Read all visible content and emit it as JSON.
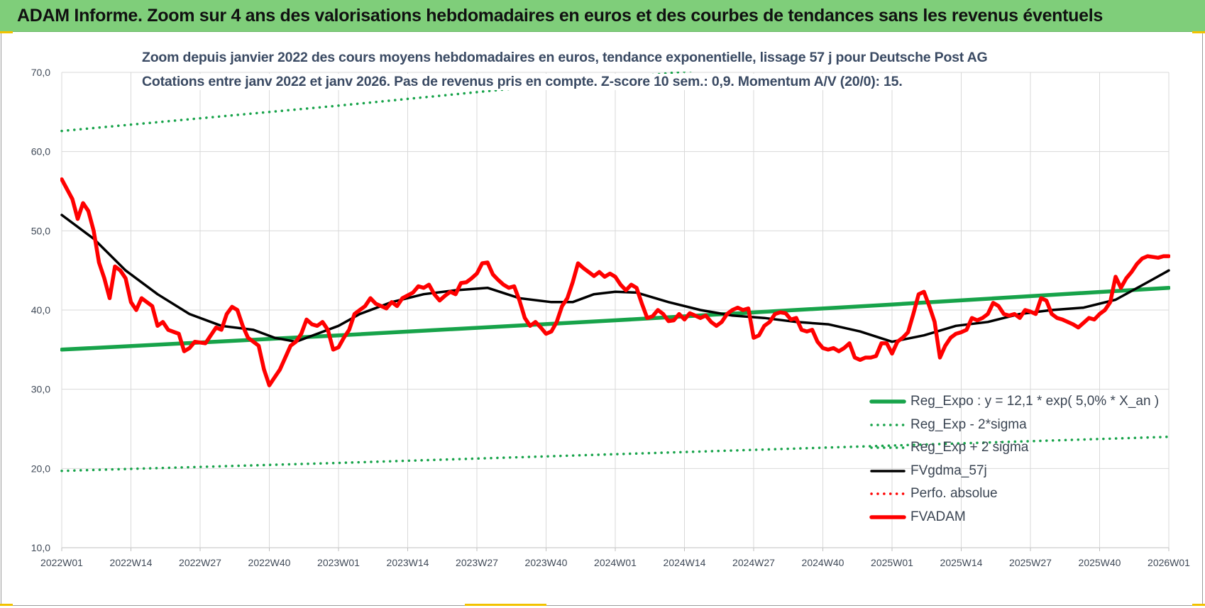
{
  "banner": {
    "title": "ADAM Informe. Zoom sur 4 ans des valorisations hebdomadaires en euros et des courbes de tendances sans les revenus éventuels"
  },
  "chart_data": {
    "type": "line",
    "title": "Zoom depuis janvier 2022 des cours moyens hebdomadaires en euros, tendance exponentielle, lissage 57 j pour Deutsche Post AG",
    "subtitle": "Cotations entre janv 2022 et janv 2026. Pas de revenus pris en compte. Z-score 10 sem.: 0,9. Momentum A/V (20/0): 15.",
    "xlabel": "",
    "ylabel": "",
    "ylim": [
      10,
      70
    ],
    "yticks": [
      "10,0",
      "20,0",
      "30,0",
      "40,0",
      "50,0",
      "60,0",
      "70,0"
    ],
    "xticks": [
      "2022W01",
      "2022W14",
      "2022W27",
      "2022W40",
      "2023W01",
      "2023W14",
      "2023W27",
      "2023W40",
      "2024W01",
      "2024W14",
      "2024W27",
      "2024W40",
      "2025W01",
      "2025W14",
      "2025W27",
      "2025W40",
      "2026W01"
    ],
    "x_range_weeks": [
      0,
      208
    ],
    "grid": true,
    "legend_position": "bottom-right",
    "series": [
      {
        "name": "Reg_Expo : y = 12,1 * exp( 5,0% *  X_an )",
        "color": "#17a34a",
        "style": "solid-thick",
        "points": [
          [
            0,
            35.0
          ],
          [
            52,
            36.8
          ],
          [
            104,
            38.7
          ],
          [
            156,
            40.7
          ],
          [
            208,
            42.8
          ]
        ]
      },
      {
        "name": "Reg_Exp - 2*sigma",
        "color": "#17a34a",
        "style": "dotted",
        "points": [
          [
            0,
            19.7
          ],
          [
            52,
            20.7
          ],
          [
            104,
            21.8
          ],
          [
            156,
            22.9
          ],
          [
            208,
            24.0
          ]
        ]
      },
      {
        "name": "Reg_Exp + 2 sigma",
        "color": "#17a34a",
        "style": "dotted",
        "points": [
          [
            0,
            62.6
          ],
          [
            52,
            65.8
          ],
          [
            104,
            69.2
          ],
          [
            156,
            72.8
          ],
          [
            208,
            76.5
          ]
        ]
      },
      {
        "name": "FVgdma_57j",
        "color": "#000000",
        "style": "solid",
        "points": [
          [
            0,
            52.0
          ],
          [
            6,
            49.0
          ],
          [
            12,
            45.0
          ],
          [
            18,
            42.0
          ],
          [
            24,
            39.5
          ],
          [
            30,
            38.0
          ],
          [
            36,
            37.5
          ],
          [
            40,
            36.5
          ],
          [
            44,
            36.0
          ],
          [
            48,
            37.0
          ],
          [
            52,
            38.0
          ],
          [
            56,
            39.5
          ],
          [
            62,
            41.0
          ],
          [
            68,
            42.0
          ],
          [
            74,
            42.5
          ],
          [
            80,
            42.8
          ],
          [
            86,
            41.5
          ],
          [
            92,
            41.0
          ],
          [
            96,
            41.0
          ],
          [
            100,
            42.0
          ],
          [
            104,
            42.3
          ],
          [
            108,
            42.2
          ],
          [
            114,
            41.0
          ],
          [
            120,
            40.0
          ],
          [
            126,
            39.3
          ],
          [
            132,
            39.0
          ],
          [
            138,
            38.5
          ],
          [
            144,
            38.2
          ],
          [
            150,
            37.3
          ],
          [
            156,
            36.0
          ],
          [
            162,
            36.8
          ],
          [
            168,
            38.0
          ],
          [
            174,
            38.5
          ],
          [
            180,
            39.5
          ],
          [
            186,
            40.0
          ],
          [
            192,
            40.3
          ],
          [
            198,
            41.3
          ],
          [
            204,
            43.5
          ],
          [
            208,
            45.0
          ]
        ]
      },
      {
        "name": "Perfo. absolue",
        "color": "#ff0000",
        "style": "dotted",
        "points": []
      },
      {
        "name": "FVADAM",
        "color": "#ff0000",
        "style": "solid-thick",
        "points": [
          [
            0,
            56.5
          ],
          [
            2,
            54.0
          ],
          [
            3,
            51.5
          ],
          [
            4,
            53.5
          ],
          [
            5,
            52.5
          ],
          [
            6,
            50.0
          ],
          [
            7,
            46.0
          ],
          [
            8,
            44.0
          ],
          [
            9,
            41.5
          ],
          [
            10,
            45.5
          ],
          [
            11,
            45.0
          ],
          [
            12,
            44.0
          ],
          [
            13,
            41.0
          ],
          [
            14,
            40.0
          ],
          [
            15,
            41.5
          ],
          [
            17,
            40.5
          ],
          [
            18,
            38.0
          ],
          [
            19,
            38.5
          ],
          [
            20,
            37.5
          ],
          [
            22,
            37.0
          ],
          [
            23,
            34.8
          ],
          [
            24,
            35.2
          ],
          [
            25,
            36.0
          ],
          [
            27,
            35.8
          ],
          [
            29,
            37.8
          ],
          [
            30,
            37.5
          ],
          [
            31,
            39.5
          ],
          [
            32,
            40.4
          ],
          [
            33,
            40.0
          ],
          [
            34,
            38.0
          ],
          [
            35,
            36.5
          ],
          [
            37,
            35.5
          ],
          [
            38,
            32.5
          ],
          [
            39,
            30.5
          ],
          [
            40,
            31.5
          ],
          [
            41,
            32.5
          ],
          [
            42,
            34.0
          ],
          [
            43,
            35.5
          ],
          [
            44,
            36.0
          ],
          [
            45,
            37.0
          ],
          [
            46,
            38.8
          ],
          [
            47,
            38.2
          ],
          [
            48,
            38.0
          ],
          [
            49,
            38.5
          ],
          [
            50,
            37.5
          ],
          [
            51,
            35.0
          ],
          [
            52,
            35.3
          ],
          [
            53,
            36.5
          ],
          [
            54,
            37.5
          ],
          [
            55,
            39.5
          ],
          [
            56,
            40.0
          ],
          [
            57,
            40.5
          ],
          [
            58,
            41.5
          ],
          [
            59,
            40.8
          ],
          [
            60,
            40.5
          ],
          [
            61,
            40.2
          ],
          [
            62,
            41.0
          ],
          [
            63,
            40.5
          ],
          [
            64,
            41.5
          ],
          [
            66,
            42.2
          ],
          [
            67,
            43.0
          ],
          [
            68,
            42.8
          ],
          [
            69,
            43.2
          ],
          [
            70,
            42.0
          ],
          [
            71,
            41.2
          ],
          [
            72,
            41.8
          ],
          [
            73,
            42.3
          ],
          [
            74,
            42.0
          ],
          [
            75,
            43.4
          ],
          [
            76,
            43.5
          ],
          [
            77,
            44.0
          ],
          [
            78,
            44.6
          ],
          [
            79,
            45.9
          ],
          [
            80,
            46.0
          ],
          [
            81,
            44.5
          ],
          [
            82,
            43.8
          ],
          [
            83,
            43.2
          ],
          [
            84,
            42.8
          ],
          [
            85,
            43.0
          ],
          [
            86,
            41.2
          ],
          [
            87,
            39.0
          ],
          [
            88,
            38.0
          ],
          [
            89,
            38.5
          ],
          [
            90,
            37.8
          ],
          [
            91,
            37.0
          ],
          [
            92,
            37.3
          ],
          [
            93,
            38.5
          ],
          [
            94,
            40.5
          ],
          [
            95,
            41.5
          ],
          [
            96,
            43.5
          ],
          [
            97,
            45.9
          ],
          [
            98,
            45.3
          ],
          [
            99,
            44.8
          ],
          [
            100,
            44.3
          ],
          [
            101,
            44.8
          ],
          [
            102,
            44.2
          ],
          [
            103,
            44.6
          ],
          [
            104,
            44.2
          ],
          [
            105,
            43.2
          ],
          [
            106,
            42.5
          ],
          [
            107,
            43.2
          ],
          [
            108,
            42.8
          ],
          [
            109,
            40.8
          ],
          [
            110,
            39.0
          ],
          [
            111,
            39.2
          ],
          [
            112,
            40.0
          ],
          [
            113,
            39.5
          ],
          [
            114,
            38.6
          ],
          [
            115,
            38.7
          ],
          [
            116,
            39.5
          ],
          [
            117,
            38.8
          ],
          [
            118,
            39.6
          ],
          [
            119,
            39.3
          ],
          [
            120,
            39.0
          ],
          [
            121,
            39.3
          ],
          [
            122,
            38.5
          ],
          [
            123,
            38.0
          ],
          [
            124,
            38.5
          ],
          [
            125,
            39.5
          ],
          [
            126,
            40.0
          ],
          [
            127,
            40.3
          ],
          [
            128,
            40.0
          ],
          [
            129,
            40.2
          ],
          [
            130,
            36.5
          ],
          [
            131,
            36.8
          ],
          [
            132,
            38.0
          ],
          [
            133,
            38.5
          ],
          [
            134,
            39.5
          ],
          [
            135,
            39.7
          ],
          [
            136,
            39.6
          ],
          [
            137,
            38.8
          ],
          [
            138,
            39.0
          ],
          [
            139,
            37.5
          ],
          [
            140,
            37.3
          ],
          [
            141,
            37.5
          ],
          [
            142,
            36.0
          ],
          [
            143,
            35.2
          ],
          [
            144,
            35.0
          ],
          [
            145,
            35.2
          ],
          [
            146,
            34.8
          ],
          [
            147,
            35.2
          ],
          [
            148,
            35.8
          ],
          [
            149,
            34.0
          ],
          [
            150,
            33.7
          ],
          [
            151,
            34.0
          ],
          [
            152,
            34.0
          ],
          [
            153,
            34.2
          ],
          [
            154,
            35.8
          ],
          [
            155,
            35.8
          ],
          [
            156,
            34.5
          ],
          [
            157,
            36.0
          ],
          [
            158,
            36.5
          ],
          [
            159,
            37.2
          ],
          [
            160,
            39.5
          ],
          [
            161,
            42.0
          ],
          [
            162,
            42.3
          ],
          [
            163,
            40.5
          ],
          [
            164,
            38.5
          ],
          [
            165,
            34.0
          ],
          [
            166,
            35.5
          ],
          [
            167,
            36.5
          ],
          [
            168,
            37.0
          ],
          [
            169,
            37.2
          ],
          [
            170,
            37.5
          ],
          [
            171,
            39.0
          ],
          [
            172,
            38.7
          ],
          [
            173,
            39.0
          ],
          [
            174,
            39.5
          ],
          [
            175,
            40.9
          ],
          [
            176,
            40.5
          ],
          [
            177,
            39.5
          ],
          [
            178,
            39.3
          ],
          [
            179,
            39.5
          ],
          [
            180,
            39.0
          ],
          [
            181,
            40.0
          ],
          [
            182,
            39.8
          ],
          [
            183,
            39.5
          ],
          [
            184,
            41.5
          ],
          [
            185,
            41.2
          ],
          [
            186,
            39.5
          ],
          [
            187,
            39.0
          ],
          [
            188,
            38.8
          ],
          [
            189,
            38.5
          ],
          [
            190,
            38.2
          ],
          [
            191,
            37.8
          ],
          [
            192,
            38.4
          ],
          [
            193,
            39.0
          ],
          [
            194,
            38.8
          ],
          [
            195,
            39.5
          ],
          [
            196,
            40.0
          ],
          [
            197,
            41.0
          ],
          [
            198,
            44.2
          ],
          [
            199,
            42.8
          ],
          [
            200,
            44.0
          ],
          [
            201,
            44.8
          ],
          [
            202,
            45.8
          ],
          [
            203,
            46.5
          ],
          [
            204,
            46.8
          ],
          [
            205,
            46.7
          ],
          [
            206,
            46.6
          ],
          [
            207,
            46.8
          ],
          [
            208,
            46.8
          ]
        ]
      }
    ]
  }
}
